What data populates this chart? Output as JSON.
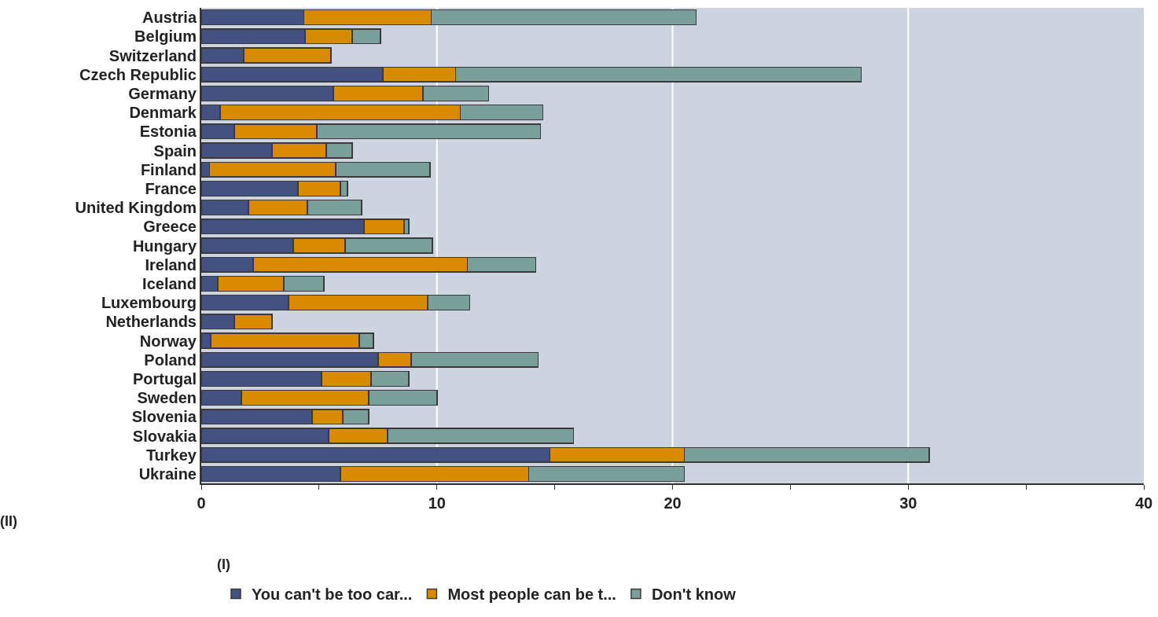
{
  "chart_data": {
    "type": "bar",
    "orientation": "horizontal",
    "stacked": true,
    "categories": [
      "Austria",
      "Belgium",
      "Switzerland",
      "Czech Republic",
      "Germany",
      "Denmark",
      "Estonia",
      "Spain",
      "Finland",
      "France",
      "United Kingdom",
      "Greece",
      "Hungary",
      "Ireland",
      "Iceland",
      "Luxembourg",
      "Netherlands",
      "Norway",
      "Poland",
      "Portugal",
      "Sweden",
      "Slovenia",
      "Slovakia",
      "Turkey",
      "Ukraine"
    ],
    "series": [
      {
        "name": "You can't be too car...",
        "color": "#435283",
        "values": [
          4.35,
          4.4,
          1.8,
          7.7,
          5.6,
          0.8,
          1.4,
          3.0,
          0.35,
          4.1,
          2.0,
          6.9,
          3.9,
          2.2,
          0.7,
          3.7,
          1.4,
          0.4,
          7.5,
          5.1,
          1.7,
          4.7,
          5.4,
          14.8,
          5.9
        ]
      },
      {
        "name": "Most people can be t...",
        "color": "#d98b00",
        "values": [
          5.4,
          2.0,
          3.7,
          3.1,
          3.8,
          10.2,
          3.5,
          2.3,
          5.35,
          1.8,
          2.5,
          1.7,
          2.2,
          9.1,
          2.8,
          5.9,
          1.6,
          6.3,
          1.4,
          2.1,
          5.4,
          1.3,
          2.5,
          5.7,
          8.0
        ]
      },
      {
        "name": "Don't know",
        "color": "#7a9e99",
        "values": [
          11.25,
          1.2,
          null,
          17.2,
          2.8,
          3.5,
          9.5,
          1.1,
          4.0,
          0.3,
          2.3,
          0.2,
          3.7,
          2.9,
          1.7,
          1.8,
          null,
          0.6,
          5.4,
          1.6,
          2.9,
          1.1,
          7.9,
          10.4,
          6.6
        ]
      }
    ],
    "xlim": [
      0,
      40
    ],
    "xticks": [
      0,
      {
        "value": 5,
        "label": null
      },
      10,
      {
        "value": 15,
        "label": null
      },
      20,
      {
        "value": 25,
        "label": null
      },
      30,
      {
        "value": 35,
        "label": null
      },
      40
    ],
    "grid": "x",
    "legend": "bottom",
    "annotations": [
      "(II)",
      "(I)"
    ]
  }
}
